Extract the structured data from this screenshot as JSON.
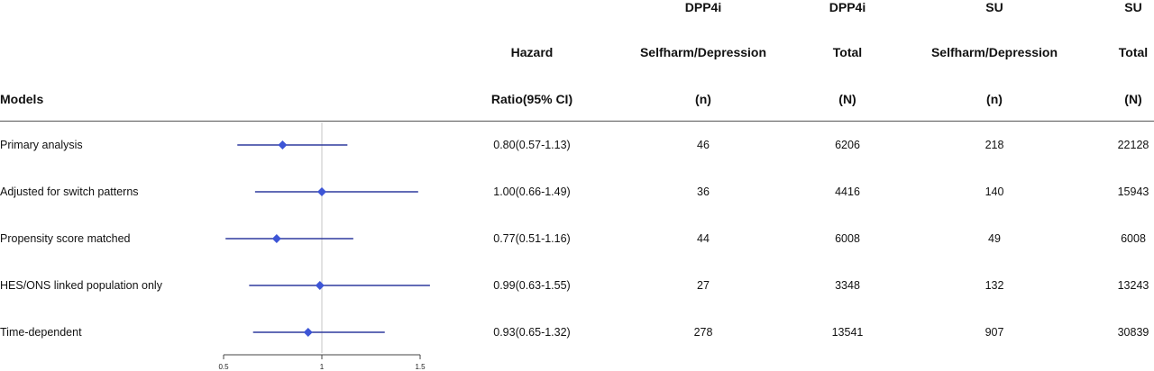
{
  "header": {
    "models": "Models",
    "hr_line1": "Hazard",
    "hr_line2": "Ratio(95% CI)",
    "dpp4i_events_line1": "DPP4i",
    "dpp4i_events_line2": "Selfharm/Depression",
    "dpp4i_events_line3": "(n)",
    "dpp4i_total_line1": "DPP4i",
    "dpp4i_total_line2": "Total",
    "dpp4i_total_line3": "(N)",
    "su_events_line1": "SU",
    "su_events_line2": "Selfharm/Depression",
    "su_events_line3": "(n)",
    "su_total_line1": "SU",
    "su_total_line2": "Total",
    "su_total_line3": "(N)"
  },
  "rows": [
    {
      "model": "Primary analysis",
      "hr_text": "0.80(0.57-1.13)",
      "dpp4i_n": "46",
      "dpp4i_total": "6206",
      "su_n": "218",
      "su_total": "22128"
    },
    {
      "model": "Adjusted for switch patterns",
      "hr_text": "1.00(0.66-1.49)",
      "dpp4i_n": "36",
      "dpp4i_total": "4416",
      "su_n": "140",
      "su_total": "15943"
    },
    {
      "model": "Propensity score matched",
      "hr_text": "0.77(0.51-1.16)",
      "dpp4i_n": "44",
      "dpp4i_total": "6008",
      "su_n": "49",
      "su_total": "6008"
    },
    {
      "model": "HES/ONS linked population only",
      "hr_text": "0.99(0.63-1.55)",
      "dpp4i_n": "27",
      "dpp4i_total": "3348",
      "su_n": "132",
      "su_total": "13243"
    },
    {
      "model": "Time-dependent",
      "hr_text": "0.93(0.65-1.32)",
      "dpp4i_n": "278",
      "dpp4i_total": "13541",
      "su_n": "907",
      "su_total": "30839"
    }
  ],
  "chart_data": {
    "type": "scatter",
    "xlabel": "",
    "ylabel": "",
    "xlim": [
      0.5,
      1.5
    ],
    "xticks": [
      "0.5",
      "1",
      "1.5"
    ],
    "reference_line": 1,
    "marker_color": "#3d55d6",
    "line_color": "#2e3a9e",
    "series": [
      {
        "points": [
          {
            "y": "Primary analysis",
            "x": 0.8,
            "low": 0.57,
            "high": 1.13
          },
          {
            "y": "Adjusted for switch patterns",
            "x": 1.0,
            "low": 0.66,
            "high": 1.49
          },
          {
            "y": "Propensity score matched",
            "x": 0.77,
            "low": 0.51,
            "high": 1.16
          },
          {
            "y": "HES/ONS linked population only",
            "x": 0.99,
            "low": 0.63,
            "high": 1.55
          },
          {
            "y": "Time-dependent",
            "x": 0.93,
            "low": 0.65,
            "high": 1.32
          }
        ]
      }
    ]
  }
}
